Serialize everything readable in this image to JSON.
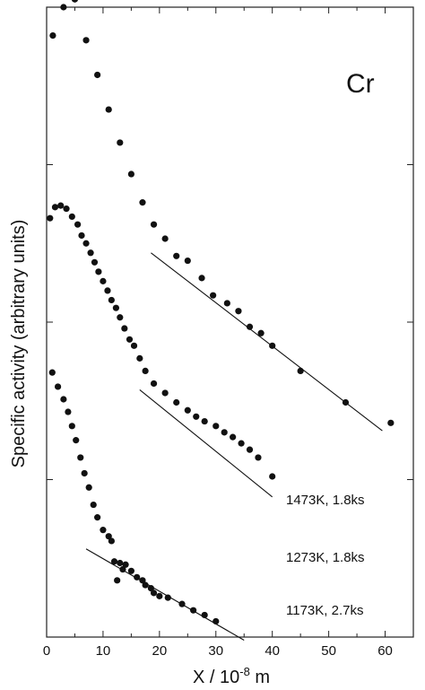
{
  "chart_data": {
    "type": "scatter",
    "panel_label": "Cr",
    "xlabel": "X / 10",
    "xlabel_exponent": "-8",
    "xlabel_unit": " m",
    "ylabel": "Specific activity (arbitrary units)",
    "y_scale": "log",
    "xlim": [
      0,
      65
    ],
    "ylim": [
      -4,
      0
    ],
    "x_ticks": [
      0,
      10,
      20,
      30,
      40,
      50,
      60
    ],
    "y_ticks": [
      -4,
      -3,
      -2,
      -1,
      0
    ],
    "series": [
      {
        "name": "1473K, 1.8ks",
        "points": [
          [
            1.1,
            -0.18
          ],
          [
            3.0,
            0.0
          ],
          [
            5.0,
            0.05
          ],
          [
            7.0,
            -0.21
          ],
          [
            9.0,
            -0.43
          ],
          [
            11.0,
            -0.65
          ],
          [
            13.0,
            -0.86
          ],
          [
            15.0,
            -1.06
          ],
          [
            17.0,
            -1.24
          ],
          [
            19.0,
            -1.38
          ],
          [
            21.0,
            -1.47
          ],
          [
            23.0,
            -1.58
          ],
          [
            25.0,
            -1.61
          ],
          [
            27.5,
            -1.72
          ],
          [
            29.5,
            -1.83
          ],
          [
            32.0,
            -1.88
          ],
          [
            34.0,
            -1.93
          ],
          [
            36.0,
            -2.03
          ],
          [
            38.0,
            -2.07
          ],
          [
            40.0,
            -2.15
          ],
          [
            45.0,
            -2.31
          ],
          [
            53.0,
            -2.51
          ],
          [
            61.0,
            -2.64
          ]
        ],
        "fit": [
          [
            18.5,
            -1.56
          ],
          [
            59.5,
            -2.69
          ]
        ]
      },
      {
        "name": "1273K, 1.8ks",
        "points": [
          [
            0.6,
            -1.34
          ],
          [
            1.5,
            -1.27
          ],
          [
            2.5,
            -1.26
          ],
          [
            3.5,
            -1.28
          ],
          [
            4.5,
            -1.33
          ],
          [
            5.5,
            -1.38
          ],
          [
            6.2,
            -1.45
          ],
          [
            7.0,
            -1.5
          ],
          [
            7.8,
            -1.56
          ],
          [
            8.5,
            -1.62
          ],
          [
            9.2,
            -1.68
          ],
          [
            10.0,
            -1.74
          ],
          [
            10.8,
            -1.8
          ],
          [
            11.5,
            -1.86
          ],
          [
            12.3,
            -1.91
          ],
          [
            13.0,
            -1.97
          ],
          [
            13.8,
            -2.04
          ],
          [
            14.7,
            -2.11
          ],
          [
            15.5,
            -2.15
          ],
          [
            16.5,
            -2.23
          ],
          [
            17.5,
            -2.31
          ],
          [
            19.0,
            -2.39
          ],
          [
            21.0,
            -2.45
          ],
          [
            23.0,
            -2.51
          ],
          [
            25.0,
            -2.56
          ],
          [
            26.5,
            -2.6
          ],
          [
            28.0,
            -2.63
          ],
          [
            30.0,
            -2.66
          ],
          [
            31.5,
            -2.7
          ],
          [
            33.0,
            -2.73
          ],
          [
            34.5,
            -2.77
          ],
          [
            36.0,
            -2.81
          ],
          [
            37.5,
            -2.86
          ],
          [
            40.0,
            -2.98
          ]
        ],
        "fit": [
          [
            16.5,
            -2.43
          ],
          [
            40.0,
            -3.11
          ]
        ]
      },
      {
        "name": "1173K, 2.7ks",
        "points": [
          [
            1.0,
            -2.32
          ],
          [
            2.0,
            -2.41
          ],
          [
            3.0,
            -2.49
          ],
          [
            3.8,
            -2.57
          ],
          [
            4.5,
            -2.66
          ],
          [
            5.2,
            -2.75
          ],
          [
            6.0,
            -2.86
          ],
          [
            6.7,
            -2.96
          ],
          [
            7.5,
            -3.05
          ],
          [
            8.3,
            -3.16
          ],
          [
            9.0,
            -3.24
          ],
          [
            10.0,
            -3.32
          ],
          [
            11.0,
            -3.36
          ],
          [
            11.5,
            -3.39
          ],
          [
            12.0,
            -3.52
          ],
          [
            12.5,
            -3.64
          ],
          [
            13.0,
            -3.53
          ],
          [
            13.5,
            -3.57
          ],
          [
            14.0,
            -3.54
          ],
          [
            15.0,
            -3.58
          ],
          [
            16.0,
            -3.62
          ],
          [
            17.0,
            -3.64
          ],
          [
            17.5,
            -3.67
          ],
          [
            18.5,
            -3.69
          ],
          [
            19.0,
            -3.72
          ],
          [
            20.0,
            -3.74
          ],
          [
            21.5,
            -3.75
          ],
          [
            24.0,
            -3.79
          ],
          [
            26.0,
            -3.83
          ],
          [
            28.0,
            -3.86
          ],
          [
            30.0,
            -3.9
          ]
        ],
        "fit": [
          [
            7.0,
            -3.44
          ],
          [
            35.0,
            -4.02
          ]
        ]
      }
    ]
  }
}
